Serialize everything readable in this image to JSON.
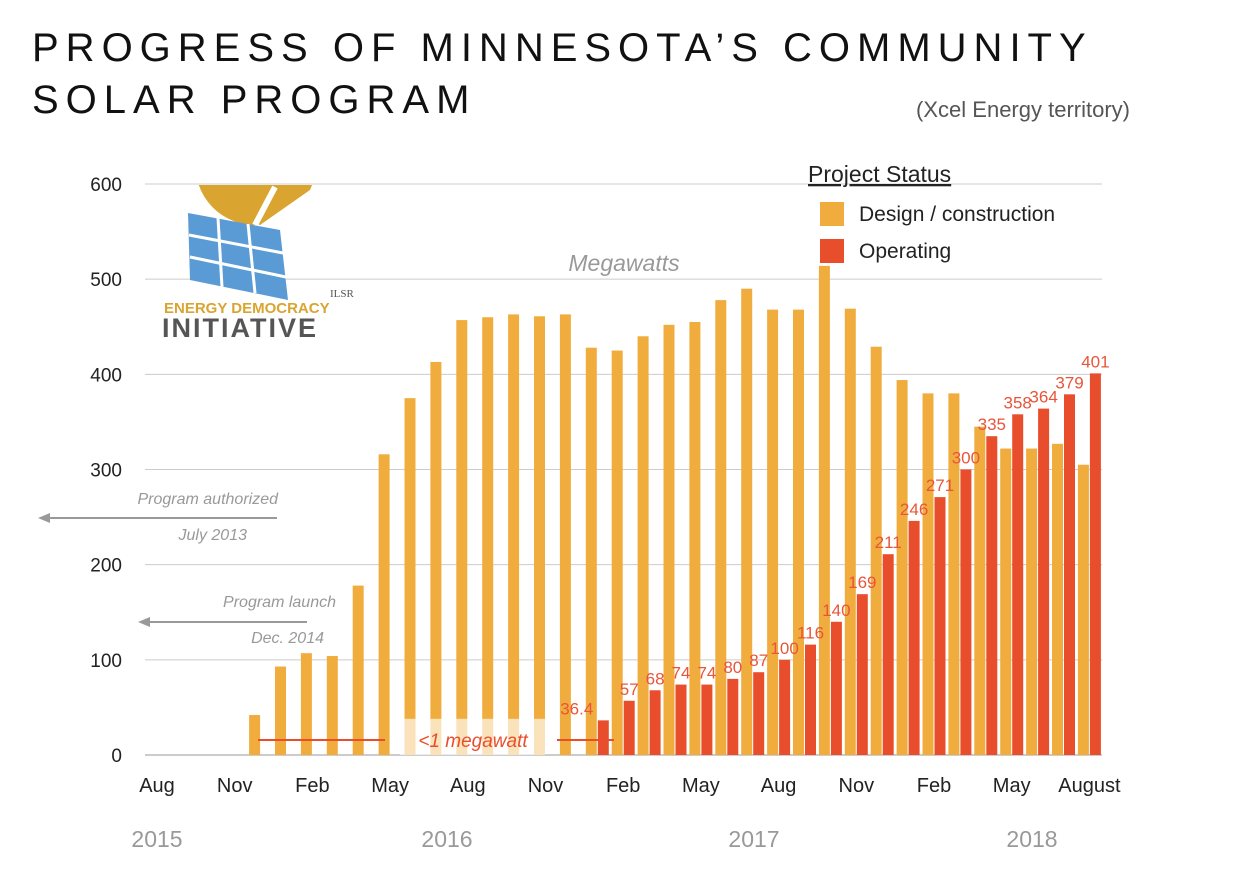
{
  "title_line1": "PROGRESS OF MINNESOTA’S COMMUNITY",
  "title_line2": "SOLAR PROGRAM",
  "subtitle": "(Xcel Energy territory)",
  "logo": {
    "small": "ILSR",
    "line1": "ENERGY DEMOCRACY",
    "line2": "INITIATIVE"
  },
  "colors": {
    "design": "#F0AD3E",
    "operating": "#E94E2C",
    "label": "#E8553A"
  },
  "chart_data": {
    "type": "bar",
    "ylabel": "Megawatts",
    "ylim": [
      0,
      600
    ],
    "yticks": [
      0,
      100,
      200,
      300,
      400,
      500,
      600
    ],
    "grid": true,
    "legend": {
      "title": "Project Status",
      "position": "top-right",
      "entries": [
        "Design / construction",
        "Operating"
      ]
    },
    "months": [
      "Aug 2015",
      "Sep 2015",
      "Oct 2015",
      "Nov 2015",
      "Dec 2015",
      "Jan 2016",
      "Feb 2016",
      "Mar 2016",
      "Apr 2016",
      "May 2016",
      "Jun 2016",
      "Jul 2016",
      "Aug 2016",
      "Sep 2016",
      "Oct 2016",
      "Nov 2016",
      "Dec 2016",
      "Jan 2017",
      "Feb 2017",
      "Mar 2017",
      "Apr 2017",
      "May 2017",
      "Jun 2017",
      "Jul 2017",
      "Aug 2017",
      "Sep 2017",
      "Oct 2017",
      "Nov 2017",
      "Dec 2017",
      "Jan 2018",
      "Feb 2018",
      "Mar 2018",
      "Apr 2018",
      "May 2018",
      "Jun 2018",
      "Jul 2018",
      "Aug 2018"
    ],
    "xtick_labels": [
      "Aug",
      "Nov",
      "Feb",
      "May",
      "Aug",
      "Nov",
      "Feb",
      "May",
      "Aug",
      "Nov",
      "Feb",
      "May",
      "August"
    ],
    "year_labels": [
      "2015",
      "2016",
      "2017",
      "2018"
    ],
    "series": [
      {
        "name": "Design / construction",
        "values": [
          null,
          null,
          null,
          null,
          42,
          93,
          107,
          104,
          178,
          316,
          375,
          413,
          457,
          460,
          463,
          461,
          463,
          428,
          425,
          440,
          452,
          455,
          478,
          490,
          468,
          468,
          514,
          469,
          429,
          394,
          380,
          380,
          345,
          322,
          322,
          327,
          305
        ]
      },
      {
        "name": "Operating",
        "values": [
          null,
          null,
          null,
          null,
          null,
          null,
          null,
          null,
          null,
          null,
          null,
          null,
          null,
          null,
          null,
          null,
          null,
          36.4,
          57,
          68,
          74,
          74,
          80,
          87,
          100,
          116,
          140,
          169,
          211,
          246,
          271,
          300,
          335,
          358,
          364,
          379,
          401
        ]
      }
    ],
    "annotations": {
      "authorized": [
        "Program authorized",
        "July 2013"
      ],
      "launch": [
        "Program launch",
        "Dec. 2014"
      ],
      "small": "<1 megawatt"
    }
  }
}
